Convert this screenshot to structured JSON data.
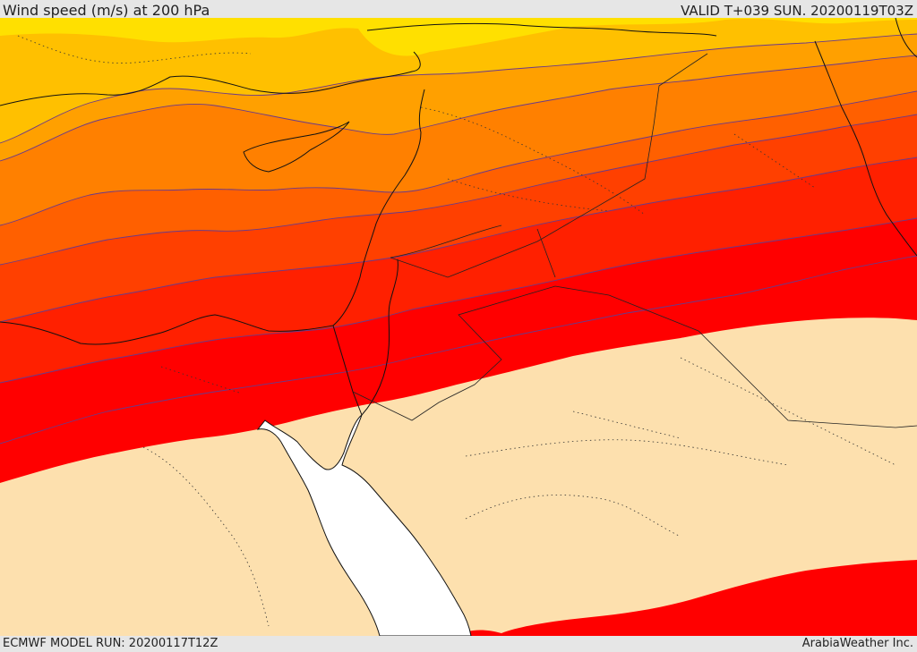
{
  "header": {
    "title": "Wind speed (m/s) at 200 hPa",
    "valid": "VALID T+039 SUN. 20200119T03Z"
  },
  "footer": {
    "model_run": "ECMWF MODEL RUN: 20200117T12Z",
    "credit": "ArabiaWeather Inc."
  },
  "map": {
    "colors": {
      "low": "#fde0ae",
      "sea": "#ffffff",
      "band_1": "#ffe000",
      "band_2": "#ffc000",
      "band_3": "#ffa000",
      "band_4": "#ff8000",
      "band_5": "#ff6000",
      "band_6": "#ff4000",
      "band_7": "#ff2000",
      "band_8": "#ff0000",
      "contour": "#6a3a8a",
      "coast": "#111111"
    }
  }
}
